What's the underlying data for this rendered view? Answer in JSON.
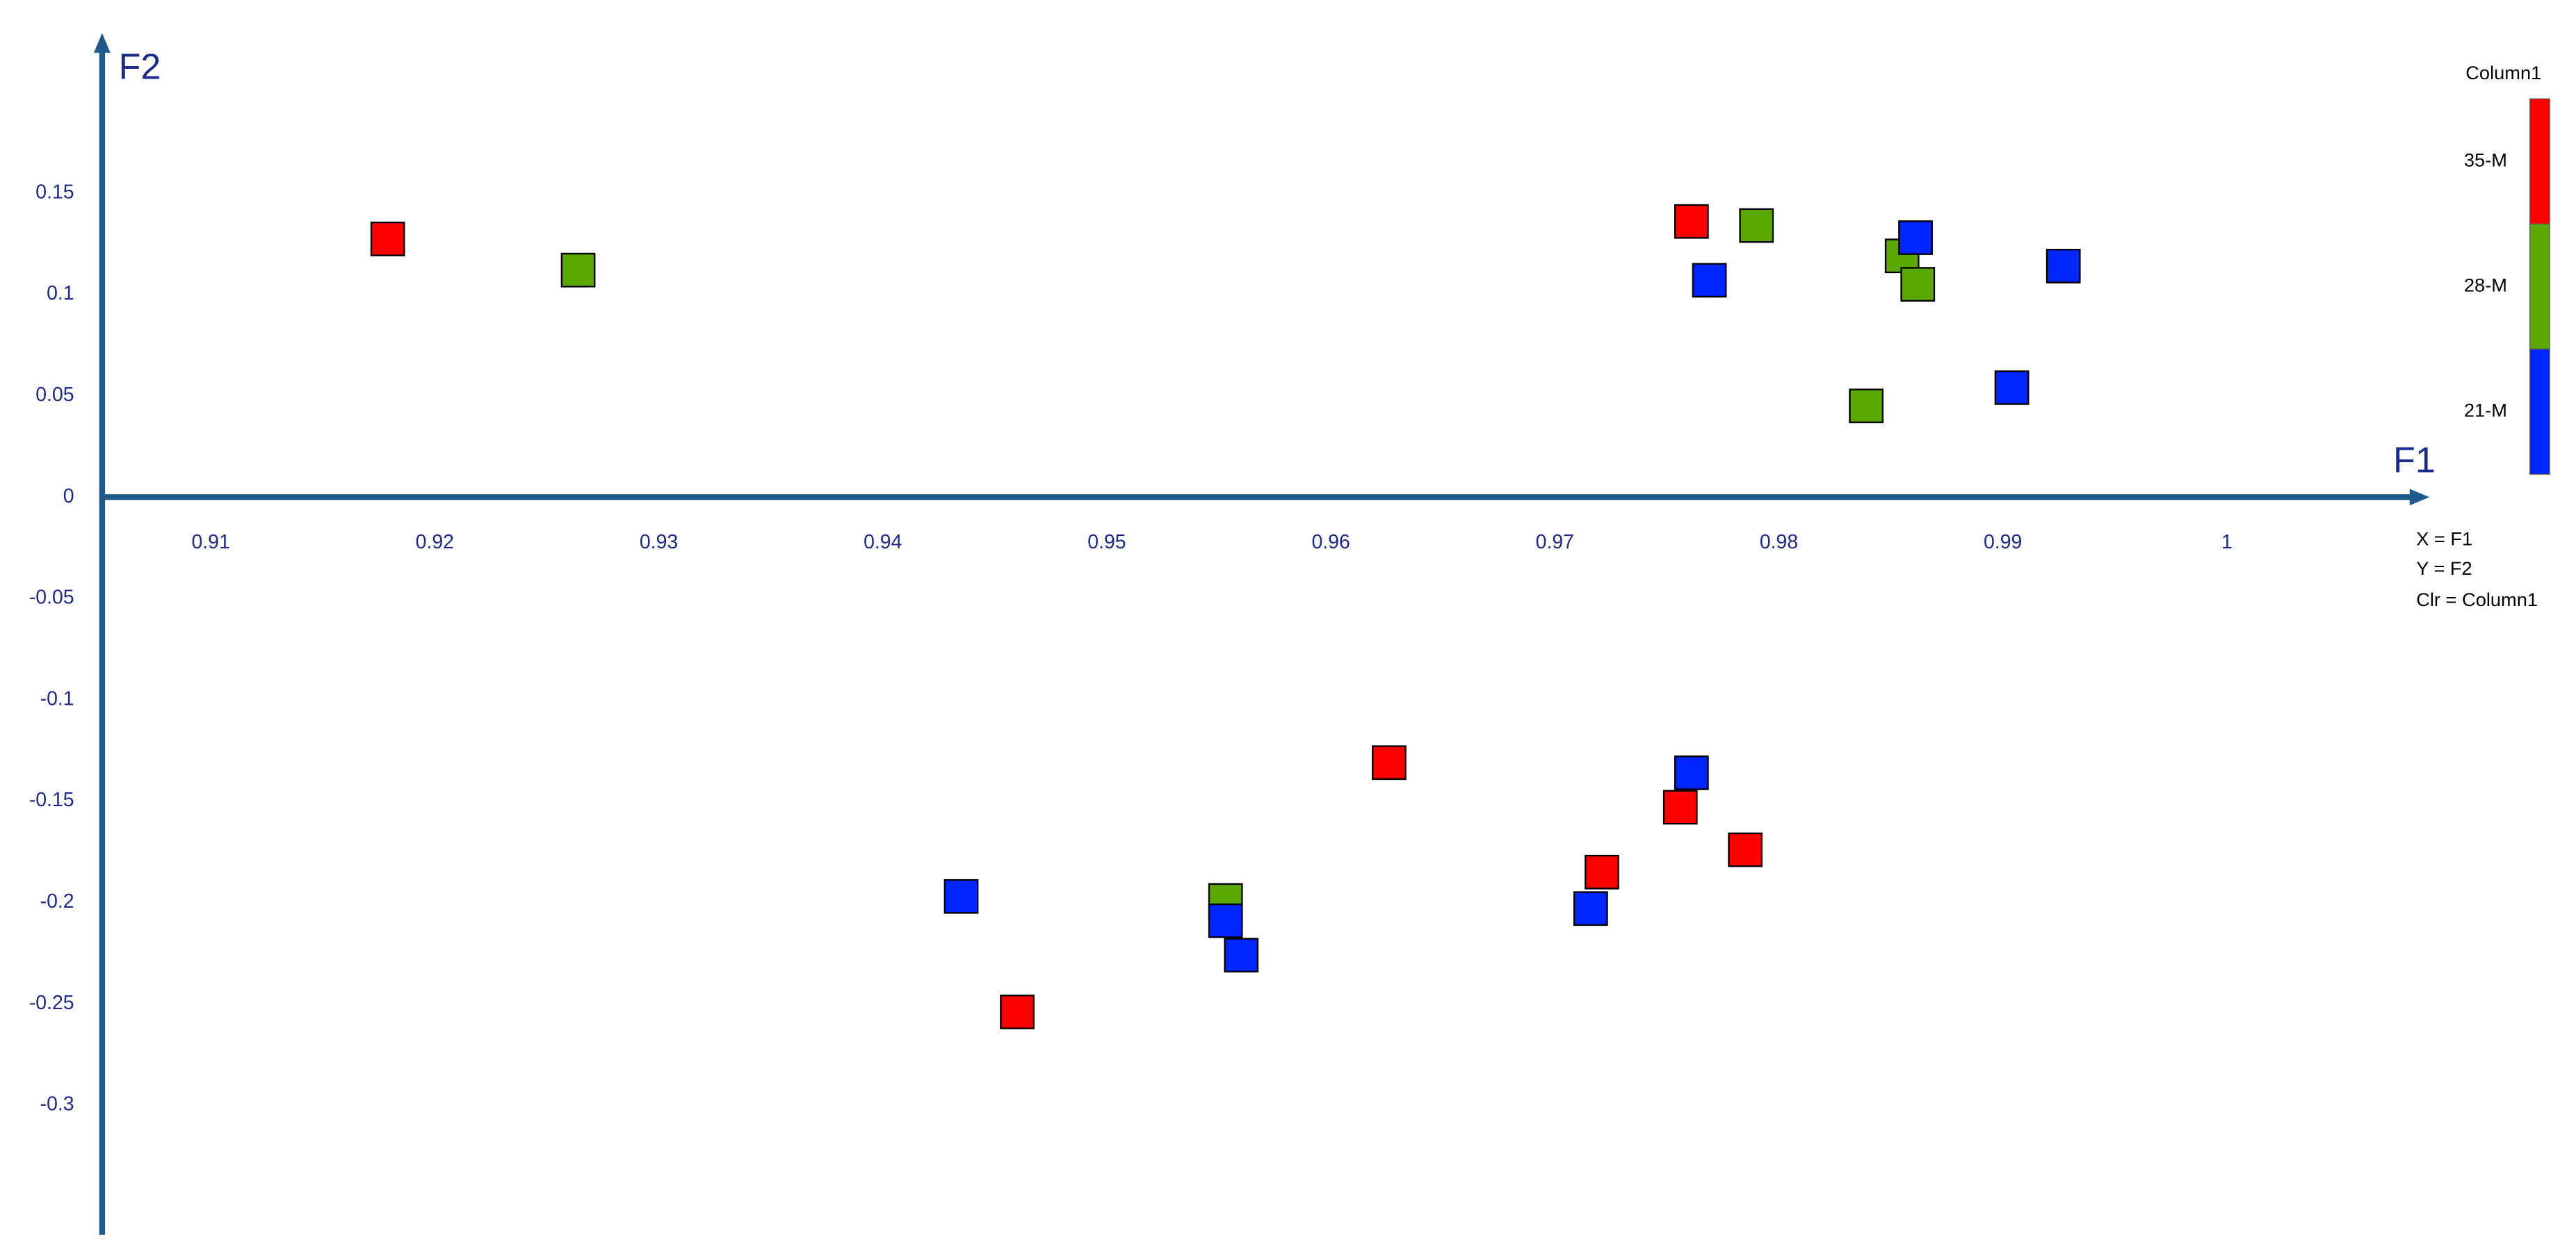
{
  "chart_data": {
    "type": "scatter",
    "x_label": "F1",
    "y_label": "F2",
    "legend_title": "Column1",
    "legend_position": "right",
    "notes": [
      "X = F1",
      "Y = F2",
      "Clr = Column1"
    ],
    "xlim": [
      0.90515,
      1.00904
    ],
    "ylim": [
      -0.364,
      0.229
    ],
    "xticks": [
      0.91,
      0.92,
      0.93,
      0.94,
      0.95,
      0.96,
      0.97,
      0.98,
      0.99,
      1
    ],
    "yticks": [
      0.15,
      0.1,
      0.05,
      0,
      -0.05,
      -0.1,
      -0.15,
      -0.2,
      -0.25,
      -0.3
    ],
    "series": [
      {
        "name": "35-M",
        "color": "#ff0000",
        "x": [
          0.9179,
          0.9761,
          0.9626,
          0.9756,
          0.9785,
          0.9721,
          0.946
        ],
        "y": [
          0.1274,
          0.136,
          -0.131,
          -0.153,
          -0.174,
          -0.185,
          -0.254
        ]
      },
      {
        "name": "28-M",
        "color": "#5aa800",
        "x": [
          0.9264,
          0.979,
          0.9855,
          0.9862,
          0.9839,
          0.9553
        ],
        "y": [
          0.112,
          0.134,
          0.119,
          0.105,
          0.045,
          -0.199
        ]
      },
      {
        "name": "21-M",
        "color": "#0026ff",
        "x": [
          0.9769,
          0.9861,
          0.9927,
          0.9904,
          0.9761,
          0.9716,
          0.9435,
          0.9553,
          0.956
        ],
        "y": [
          0.107,
          0.128,
          0.114,
          0.054,
          -0.136,
          -0.203,
          -0.197,
          -0.209,
          -0.226
        ]
      }
    ]
  }
}
